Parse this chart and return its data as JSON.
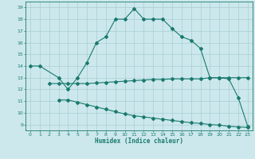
{
  "line1_x": [
    0,
    1,
    3,
    4,
    5,
    6,
    7,
    8,
    9,
    10,
    11,
    12,
    13,
    14,
    15,
    16,
    17,
    18,
    19,
    20,
    21,
    22,
    23
  ],
  "line1_y": [
    14,
    14,
    13,
    12,
    13,
    14.3,
    16,
    16.5,
    18,
    18,
    18.9,
    18,
    18,
    18,
    17.2,
    16.5,
    16.2,
    15.5,
    13,
    13,
    12.9,
    11.3,
    8.85
  ],
  "line2_x": [
    2,
    3,
    4,
    5,
    6,
    7,
    8,
    9,
    10,
    11,
    12,
    13,
    14,
    15,
    16,
    17,
    18,
    19,
    20,
    21,
    22,
    23
  ],
  "line2_y": [
    12.5,
    12.5,
    12.5,
    12.5,
    12.5,
    12.55,
    12.6,
    12.65,
    12.7,
    12.75,
    12.8,
    12.85,
    12.85,
    12.9,
    12.9,
    12.9,
    12.9,
    13.0,
    13.0,
    13.0,
    13.0,
    13.0
  ],
  "line3_x": [
    3,
    4,
    5,
    6,
    7,
    8,
    9,
    10,
    11,
    12,
    13,
    14,
    15,
    16,
    17,
    18,
    19,
    20,
    21,
    22,
    23
  ],
  "line3_y": [
    11.1,
    11.1,
    10.9,
    10.7,
    10.5,
    10.3,
    10.1,
    9.9,
    9.75,
    9.65,
    9.55,
    9.45,
    9.35,
    9.25,
    9.15,
    9.1,
    9.0,
    8.95,
    8.85,
    8.8,
    8.75
  ],
  "color": "#1a7a6e",
  "bg_color": "#cce8ec",
  "grid_color": "#a8cdd4",
  "xlabel": "Humidex (Indice chaleur)",
  "ylim": [
    8.5,
    19.5
  ],
  "xlim": [
    -0.5,
    23.5
  ],
  "yticks": [
    9,
    10,
    11,
    12,
    13,
    14,
    15,
    16,
    17,
    18,
    19
  ],
  "xticks": [
    0,
    1,
    2,
    3,
    4,
    5,
    6,
    7,
    8,
    9,
    10,
    11,
    12,
    13,
    14,
    15,
    16,
    17,
    18,
    19,
    20,
    21,
    22,
    23
  ]
}
